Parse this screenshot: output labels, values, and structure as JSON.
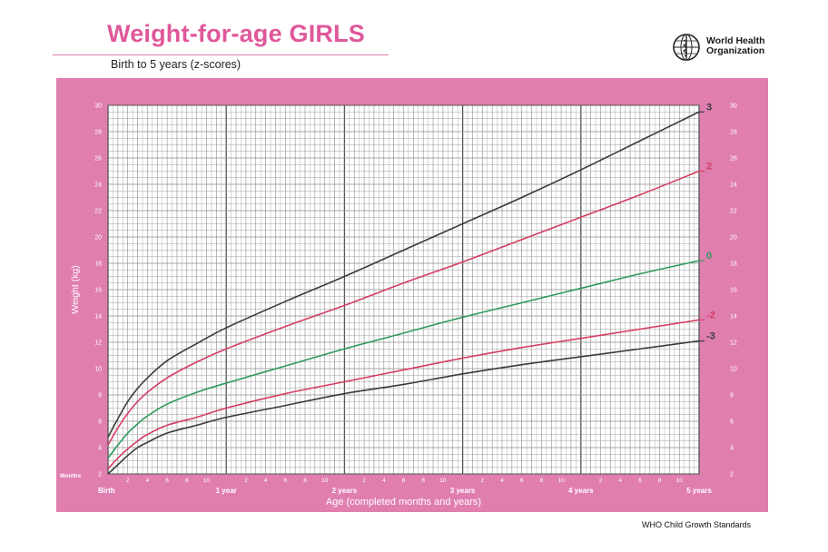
{
  "header": {
    "title": "Weight-for-age GIRLS",
    "subtitle": "Birth to 5 years (z-scores)",
    "org_name": "World Health Organization",
    "logo_icon": "who-emblem-icon"
  },
  "footer": {
    "source": "WHO Child Growth Standards"
  },
  "colors": {
    "frame": "#e07eb0",
    "plot_bg": "#ffffff",
    "grid": "#8c8c8c",
    "title": "#e0579b",
    "line_3": "#3a3a3a",
    "line_2": "#d63c62",
    "line_0": "#2f9a5b",
    "line_neg2": "#d63c62",
    "line_neg3": "#3a3a3a"
  },
  "chart_data": {
    "type": "line",
    "title": "Weight-for-age GIRLS",
    "subtitle": "Birth to 5 years (z-scores)",
    "xlabel": "Age (completed months and years)",
    "ylabel": "Weight (kg)",
    "xlim": [
      0,
      60
    ],
    "ylim": [
      2,
      30
    ],
    "y_ticks": [
      2,
      4,
      6,
      8,
      10,
      12,
      14,
      16,
      18,
      20,
      22,
      24,
      26,
      28,
      30
    ],
    "x_month_label": "Months",
    "x_month_ticks": [
      2,
      4,
      6,
      8,
      10
    ],
    "x_year_labels": [
      {
        "x": 0,
        "label": "Birth"
      },
      {
        "x": 12,
        "label": "1 year"
      },
      {
        "x": 24,
        "label": "2 years"
      },
      {
        "x": 36,
        "label": "3 years"
      },
      {
        "x": 48,
        "label": "4 years"
      },
      {
        "x": 60,
        "label": "5 years"
      }
    ],
    "grid": true,
    "x": [
      0,
      1,
      2,
      3,
      4,
      6,
      9,
      12,
      18,
      24,
      30,
      36,
      42,
      48,
      54,
      60
    ],
    "series": [
      {
        "name": "3",
        "color": "#3a3a3a",
        "values": [
          4.8,
          6.2,
          7.5,
          8.5,
          9.3,
          10.6,
          11.9,
          13.1,
          15.1,
          17.0,
          19.0,
          21.0,
          23.0,
          25.1,
          27.3,
          29.5
        ]
      },
      {
        "name": "2",
        "color": "#d63c62",
        "values": [
          4.2,
          5.5,
          6.6,
          7.5,
          8.2,
          9.3,
          10.5,
          11.5,
          13.2,
          14.8,
          16.5,
          18.1,
          19.8,
          21.5,
          23.2,
          25.0
        ]
      },
      {
        "name": "0",
        "color": "#2f9a5b",
        "values": [
          3.2,
          4.2,
          5.1,
          5.8,
          6.4,
          7.3,
          8.2,
          8.9,
          10.2,
          11.5,
          12.7,
          13.9,
          15.0,
          16.1,
          17.2,
          18.2
        ]
      },
      {
        "name": "-2",
        "color": "#d63c62",
        "values": [
          2.4,
          3.2,
          3.9,
          4.5,
          5.0,
          5.7,
          6.3,
          7.0,
          8.1,
          9.0,
          9.9,
          10.8,
          11.6,
          12.3,
          13.0,
          13.7
        ]
      },
      {
        "name": "-3",
        "color": "#3a3a3a",
        "values": [
          2.0,
          2.7,
          3.4,
          4.0,
          4.4,
          5.1,
          5.7,
          6.3,
          7.2,
          8.1,
          8.8,
          9.6,
          10.3,
          10.9,
          11.5,
          12.1
        ]
      }
    ]
  }
}
